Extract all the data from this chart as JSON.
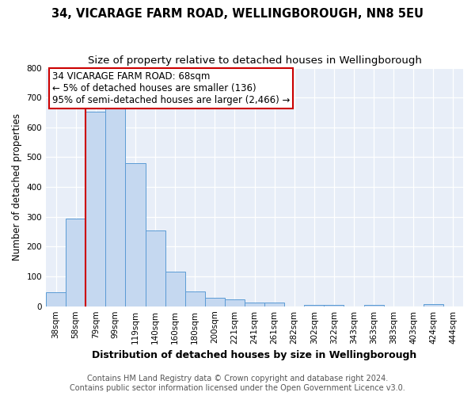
{
  "title": "34, VICARAGE FARM ROAD, WELLINGBOROUGH, NN8 5EU",
  "subtitle": "Size of property relative to detached houses in Wellingborough",
  "xlabel": "Distribution of detached houses by size in Wellingborough",
  "ylabel": "Number of detached properties",
  "bar_labels": [
    "38sqm",
    "58sqm",
    "79sqm",
    "99sqm",
    "119sqm",
    "140sqm",
    "160sqm",
    "180sqm",
    "200sqm",
    "221sqm",
    "241sqm",
    "261sqm",
    "282sqm",
    "302sqm",
    "322sqm",
    "343sqm",
    "363sqm",
    "383sqm",
    "403sqm",
    "424sqm",
    "444sqm"
  ],
  "bar_values": [
    48,
    293,
    652,
    667,
    480,
    253,
    115,
    50,
    28,
    22,
    13,
    13,
    0,
    5,
    5,
    0,
    5,
    0,
    0,
    8,
    0
  ],
  "bar_color": "#c5d8f0",
  "bar_edge_color": "#5b9bd5",
  "vline_x_index": 1.5,
  "vline_color": "#cc0000",
  "ylim": [
    0,
    800
  ],
  "yticks": [
    0,
    100,
    200,
    300,
    400,
    500,
    600,
    700,
    800
  ],
  "annotation_title": "34 VICARAGE FARM ROAD: 68sqm",
  "annotation_line1": "← 5% of detached houses are smaller (136)",
  "annotation_line2": "95% of semi-detached houses are larger (2,466) →",
  "annotation_box_facecolor": "#ffffff",
  "annotation_box_edgecolor": "#cc0000",
  "footer_line1": "Contains HM Land Registry data © Crown copyright and database right 2024.",
  "footer_line2": "Contains public sector information licensed under the Open Government Licence v3.0.",
  "fig_bg_color": "#ffffff",
  "plot_bg_color": "#e8eef8",
  "title_fontsize": 10.5,
  "subtitle_fontsize": 9.5,
  "tick_fontsize": 7.5,
  "ylabel_fontsize": 8.5,
  "xlabel_fontsize": 9,
  "footer_fontsize": 7,
  "annotation_fontsize": 8.5
}
